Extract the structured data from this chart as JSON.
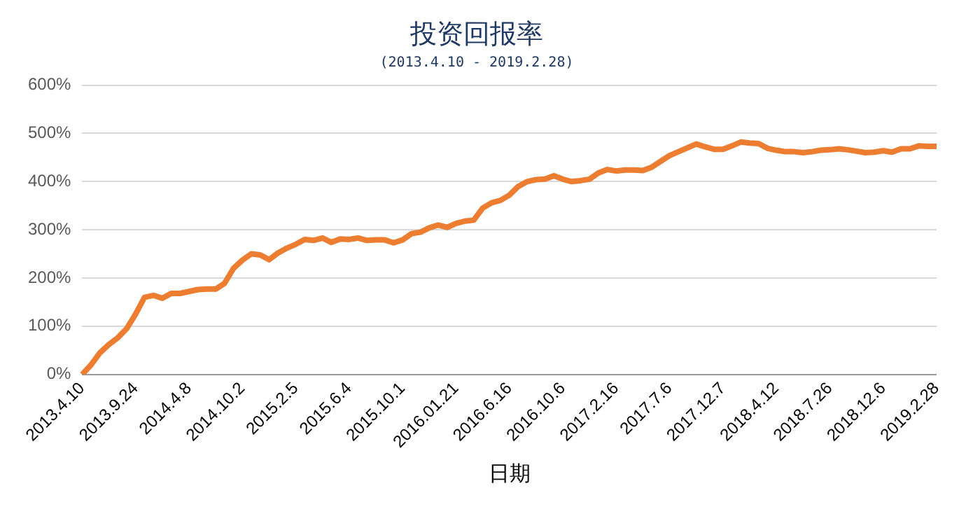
{
  "chart_data": {
    "type": "line",
    "title": "投资回报率",
    "subtitle": "(2013.4.10 - 2019.2.28)",
    "xlabel": "日期",
    "categories": [
      "2013.4.10",
      null,
      null,
      null,
      null,
      null,
      "2013.9.24",
      null,
      null,
      null,
      null,
      null,
      "2014.4.8",
      null,
      null,
      null,
      null,
      null,
      "2014.10.2",
      null,
      null,
      null,
      null,
      null,
      "2015.2.5",
      null,
      null,
      null,
      null,
      null,
      "2015.6.4",
      null,
      null,
      null,
      null,
      null,
      "2015.10.1",
      null,
      null,
      null,
      null,
      null,
      "2016.01.21",
      null,
      null,
      null,
      null,
      null,
      "2016.6.16",
      null,
      null,
      null,
      null,
      null,
      "2016.10.6",
      null,
      null,
      null,
      null,
      null,
      "2017.2.16",
      null,
      null,
      null,
      null,
      null,
      "2017.7.6",
      null,
      null,
      null,
      null,
      null,
      "2017.12.7",
      null,
      null,
      null,
      null,
      null,
      "2018.4.12",
      null,
      null,
      null,
      null,
      null,
      "2018.7.26",
      null,
      null,
      null,
      null,
      null,
      "2018.12.6",
      null,
      null,
      null,
      null,
      null,
      "2019.2.28"
    ],
    "series": [
      {
        "color": "#ed7d31",
        "values": [
          0,
          20,
          45,
          62,
          76,
          95,
          125,
          160,
          164,
          158,
          168,
          168,
          172,
          176,
          177,
          177,
          189,
          220,
          237,
          250,
          248,
          238,
          252,
          262,
          270,
          280,
          278,
          283,
          274,
          281,
          280,
          283,
          278,
          279,
          279,
          273,
          279,
          292,
          295,
          304,
          310,
          305,
          313,
          318,
          320,
          345,
          356,
          361,
          372,
          390,
          400,
          404,
          405,
          412,
          405,
          400,
          402,
          405,
          418,
          425,
          422,
          424,
          424,
          423,
          430,
          442,
          454,
          462,
          470,
          478,
          472,
          467,
          467,
          474,
          482,
          480,
          479,
          469,
          465,
          462,
          462,
          460,
          462,
          465,
          466,
          468,
          466,
          463,
          460,
          461,
          464,
          461,
          468,
          468,
          474,
          473,
          473
        ]
      }
    ],
    "ylim": [
      0,
      600
    ],
    "yticks": [
      {
        "value": 0,
        "label": "0%"
      },
      {
        "value": 100,
        "label": "100%"
      },
      {
        "value": 200,
        "label": "200%"
      },
      {
        "value": 300,
        "label": "300%"
      },
      {
        "value": 400,
        "label": "400%"
      },
      {
        "value": 500,
        "label": "500%"
      },
      {
        "value": 600,
        "label": "600%"
      }
    ],
    "grid": "y"
  }
}
